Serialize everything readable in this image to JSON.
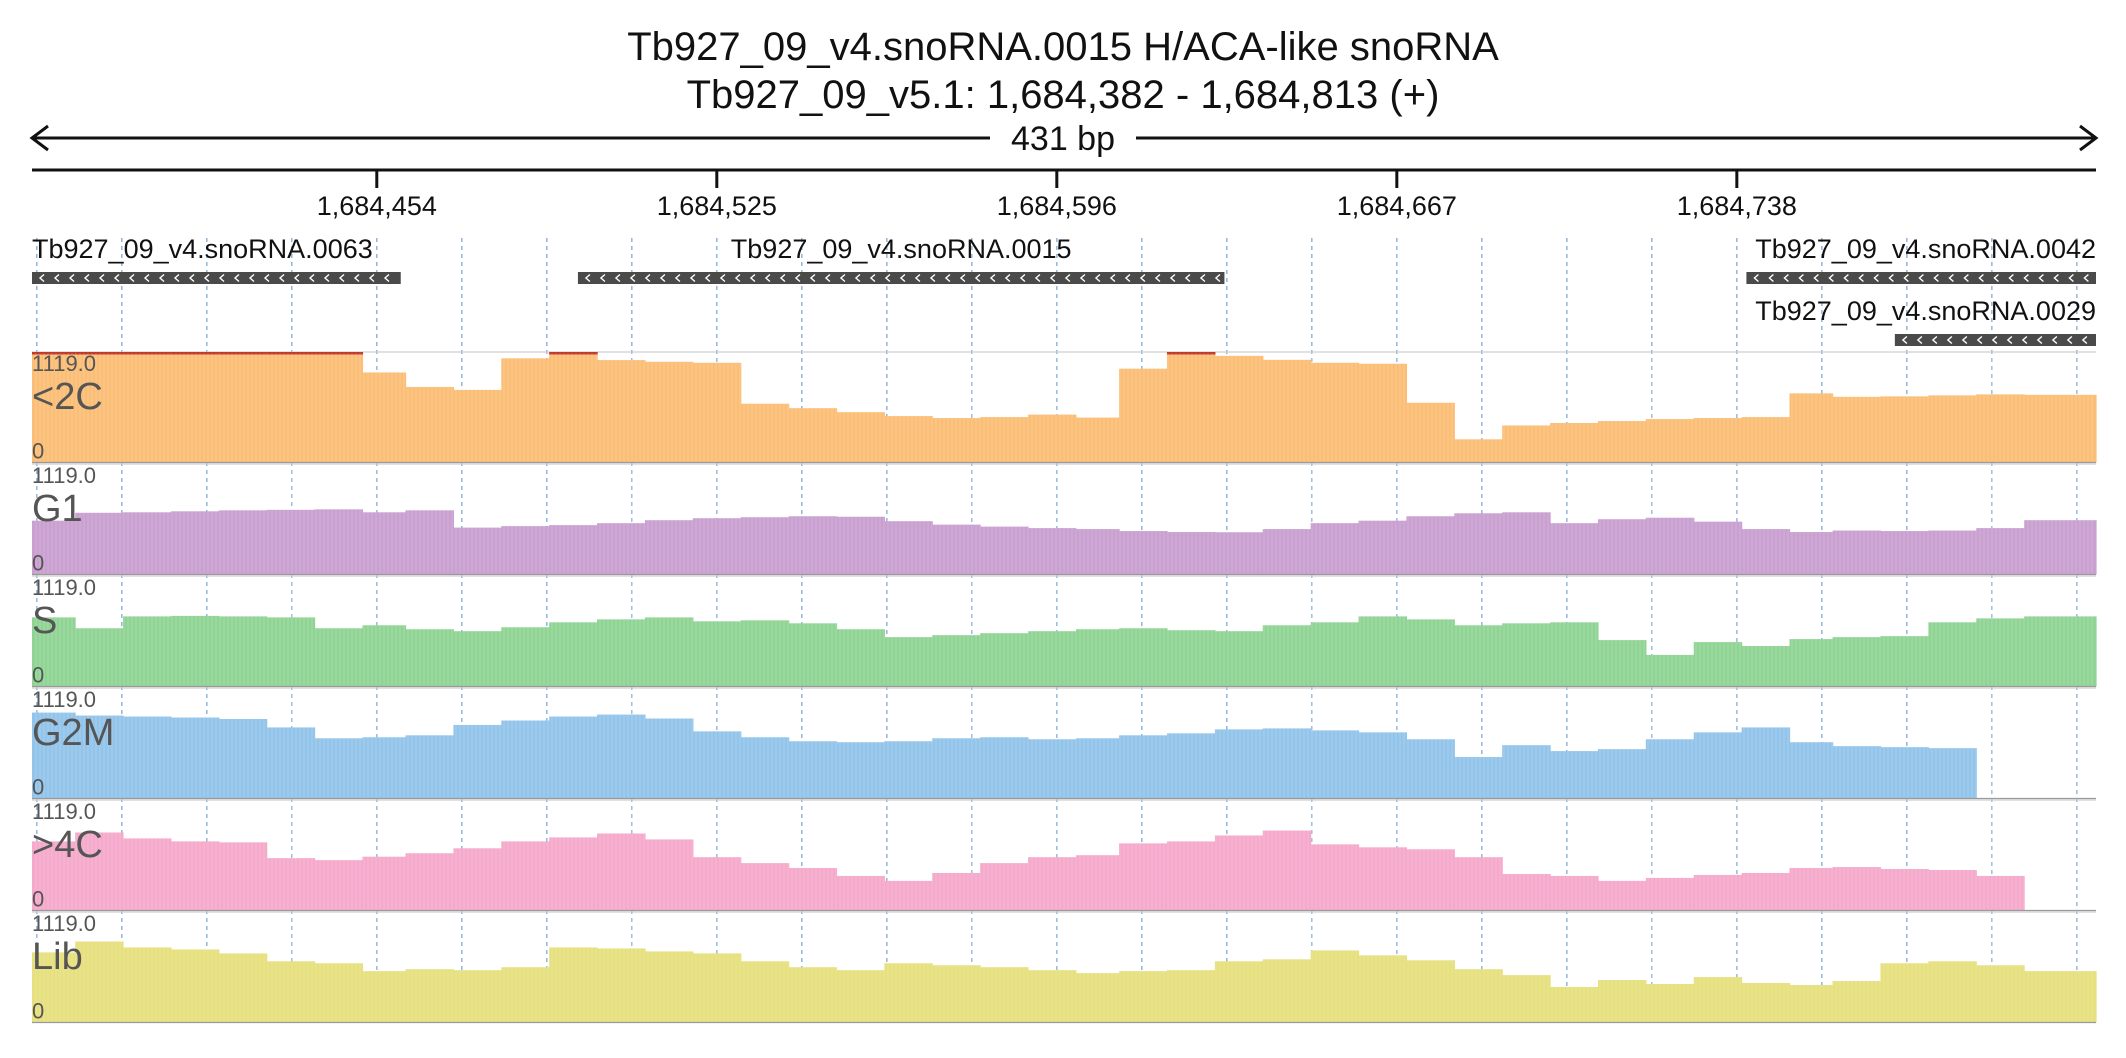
{
  "header": {
    "title": "Tb927_09_v4.snoRNA.0015  H/ACA-like snoRNA",
    "subtitle": "Tb927_09_v5.1: 1,684,382 - 1,684,813 (+)",
    "span_label": "431 bp"
  },
  "chart_data": {
    "type": "bar",
    "xrange": [
      1684382,
      1684813
    ],
    "ticks": [
      {
        "pos": 1684454,
        "label": "1,684,454"
      },
      {
        "pos": 1684525,
        "label": "1,684,525"
      },
      {
        "pos": 1684596,
        "label": "1,684,596"
      },
      {
        "pos": 1684667,
        "label": "1,684,667"
      },
      {
        "pos": 1684738,
        "label": "1,684,738"
      }
    ],
    "grid": true,
    "features": [
      {
        "name": "Tb927_09_v4.snoRNA.0063",
        "start": 1684382,
        "end": 1684459,
        "strand": "-",
        "row": 0,
        "label_align": "start"
      },
      {
        "name": "Tb927_09_v4.snoRNA.0015",
        "start": 1684496,
        "end": 1684631,
        "strand": "-",
        "row": 0,
        "label_align": "middle"
      },
      {
        "name": "Tb927_09_v4.snoRNA.0042",
        "start": 1684740,
        "end": 1684813,
        "strand": "-",
        "row": 0,
        "label_align": "end"
      },
      {
        "name": "Tb927_09_v4.snoRNA.0029",
        "start": 1684771,
        "end": 1684813,
        "strand": "-",
        "row": 1,
        "label_align": "end"
      }
    ],
    "bin_edges": [
      1684382,
      1684391,
      1684401,
      1684411,
      1684421,
      1684431,
      1684441,
      1684451,
      1684460,
      1684470,
      1684480,
      1684490,
      1684500,
      1684510,
      1684520,
      1684530,
      1684540,
      1684550,
      1684560,
      1684570,
      1684580,
      1684590,
      1684600,
      1684609,
      1684619,
      1684629,
      1684639,
      1684649,
      1684659,
      1684669,
      1684679,
      1684689,
      1684699,
      1684709,
      1684719,
      1684729,
      1684739,
      1684749,
      1684758,
      1684768,
      1684778,
      1684788,
      1684798,
      1684813
    ],
    "ymax": 1119.0,
    "ylim": [
      0,
      1119.0
    ],
    "series": [
      {
        "name": "<2C",
        "color": "#fbbe77",
        "max_color": "#c0392b",
        "values": [
          1119,
          1119,
          1119,
          1119,
          1119,
          1119,
          1119,
          912,
          765,
          735,
          1055,
          1119,
          1037,
          1020,
          1010,
          595,
          550,
          510,
          470,
          450,
          460,
          485,
          455,
          950,
          1119,
          1080,
          1040,
          1010,
          1000,
          605,
          235,
          375,
          400,
          420,
          440,
          450,
          460,
          700,
          665,
          670,
          680,
          690,
          685,
          680
        ]
      },
      {
        "name": "G1",
        "color": "#c9a0d0",
        "values": [
          545,
          625,
          630,
          640,
          650,
          655,
          660,
          630,
          650,
          475,
          490,
          500,
          520,
          550,
          570,
          580,
          590,
          585,
          540,
          505,
          485,
          470,
          460,
          440,
          430,
          428,
          460,
          520,
          545,
          590,
          620,
          630,
          520,
          560,
          575,
          535,
          460,
          430,
          445,
          440,
          445,
          470,
          550,
          635,
          565,
          510,
          500
        ]
      },
      {
        "name": "S",
        "color": "#90d495",
        "values": [
          700,
          590,
          710,
          715,
          710,
          700,
          590,
          620,
          580,
          560,
          600,
          650,
          680,
          700,
          660,
          670,
          640,
          580,
          500,
          520,
          540,
          560,
          580,
          590,
          570,
          560,
          620,
          650,
          710,
          680,
          620,
          640,
          650,
          470,
          320,
          450,
          410,
          480,
          500,
          510,
          650,
          690,
          710,
          630,
          550,
          530
        ]
      },
      {
        "name": "G2M",
        "color": "#93c4ea",
        "values": [
          870,
          840,
          830,
          820,
          805,
          720,
          610,
          620,
          640,
          745,
          790,
          830,
          850,
          810,
          680,
          620,
          580,
          570,
          580,
          610,
          620,
          600,
          610,
          640,
          660,
          700,
          710,
          690,
          670,
          600,
          420,
          540,
          480,
          500,
          600,
          670,
          720,
          570,
          530,
          520,
          510
        ]
      },
      {
        "name": ">4C",
        "color": "#f5a9cb",
        "values": [
          700,
          790,
          730,
          700,
          690,
          530,
          510,
          545,
          580,
          630,
          700,
          740,
          780,
          720,
          540,
          480,
          430,
          350,
          300,
          380,
          480,
          540,
          560,
          680,
          700,
          760,
          810,
          670,
          640,
          620,
          540,
          370,
          350,
          300,
          330,
          360,
          380,
          430,
          440,
          420,
          410,
          350
        ]
      },
      {
        "name": "Lib",
        "color": "#e6e07f",
        "values": [
          710,
          820,
          760,
          740,
          700,
          620,
          600,
          520,
          540,
          530,
          560,
          760,
          750,
          720,
          700,
          620,
          560,
          530,
          600,
          580,
          560,
          530,
          500,
          520,
          530,
          620,
          640,
          730,
          680,
          630,
          540,
          480,
          360,
          430,
          390,
          460,
          400,
          380,
          420,
          600,
          620,
          580,
          520,
          500,
          550
        ]
      }
    ]
  }
}
